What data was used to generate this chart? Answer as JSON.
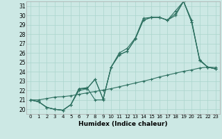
{
  "xlabel": "Humidex (Indice chaleur)",
  "bg_color": "#cce8e4",
  "grid_color": "#aad4cc",
  "line_color": "#2d7060",
  "xlim": [
    -0.5,
    23.5
  ],
  "ylim": [
    19.5,
    31.5
  ],
  "xticks": [
    0,
    1,
    2,
    3,
    4,
    5,
    6,
    7,
    8,
    9,
    10,
    11,
    12,
    13,
    14,
    15,
    16,
    17,
    18,
    19,
    20,
    21,
    22,
    23
  ],
  "yticks": [
    20,
    21,
    22,
    23,
    24,
    25,
    26,
    27,
    28,
    29,
    30,
    31
  ],
  "lines": [
    [
      21.0,
      20.8,
      20.2,
      20.0,
      19.9,
      20.5,
      22.0,
      22.2,
      23.2,
      21.1,
      24.5,
      26.0,
      26.5,
      27.6,
      29.7,
      29.8,
      29.8,
      29.5,
      30.2,
      31.5,
      29.3,
      25.2,
      24.5,
      24.3
    ],
    [
      21.0,
      20.8,
      20.2,
      20.0,
      19.9,
      20.5,
      22.2,
      22.3,
      21.0,
      21.0,
      24.5,
      25.8,
      26.2,
      27.5,
      29.5,
      29.8,
      29.8,
      29.5,
      30.5,
      31.5,
      29.3,
      25.3,
      24.5,
      24.3
    ],
    [
      21.0,
      20.8,
      20.2,
      20.0,
      19.9,
      20.5,
      22.2,
      22.2,
      23.2,
      21.1,
      24.5,
      25.8,
      26.2,
      27.5,
      29.5,
      29.8,
      29.8,
      29.5,
      30.0,
      31.5,
      29.5,
      25.2,
      24.5,
      24.3
    ],
    [
      21.0,
      21.0,
      21.15,
      21.3,
      21.35,
      21.45,
      21.6,
      21.75,
      21.9,
      22.05,
      22.2,
      22.4,
      22.6,
      22.8,
      23.0,
      23.2,
      23.45,
      23.65,
      23.85,
      24.05,
      24.2,
      24.4,
      24.5,
      24.45
    ]
  ]
}
